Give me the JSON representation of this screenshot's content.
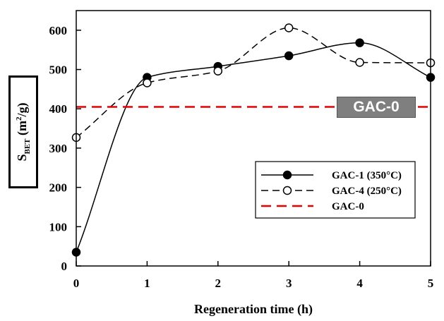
{
  "chart_data": {
    "type": "line",
    "xlabel": "Regeneration time (h)",
    "ylabel": {
      "main": "S",
      "sub": "BET",
      "unit_pre": " (m",
      "unit_sup": "2",
      "unit_post": "/g)"
    },
    "xlim": [
      0,
      5
    ],
    "ylim": [
      0,
      650
    ],
    "xticks": [
      0,
      1,
      2,
      3,
      4,
      5
    ],
    "yticks": [
      0,
      100,
      200,
      300,
      400,
      500,
      600
    ],
    "grid": false,
    "legend_position": "lower-right",
    "series": [
      {
        "name": "GAC-1 (350°C)",
        "x": [
          0,
          1,
          2,
          3,
          4,
          5
        ],
        "y": [
          35,
          480,
          508,
          535,
          568,
          480
        ],
        "style": "solid",
        "marker": "filled-circle",
        "color": "#000000"
      },
      {
        "name": "GAC-4 (250°C)",
        "x": [
          0,
          1,
          2,
          3,
          4,
          5
        ],
        "y": [
          327,
          466,
          496,
          606,
          518,
          517
        ],
        "style": "dashed",
        "marker": "open-circle",
        "color": "#000000"
      },
      {
        "name": "GAC-0",
        "y_const": 405,
        "style": "dashed",
        "marker": "none",
        "color": "#e60000"
      }
    ],
    "annotations": [
      {
        "text": "GAC-0",
        "y": 405
      }
    ]
  }
}
